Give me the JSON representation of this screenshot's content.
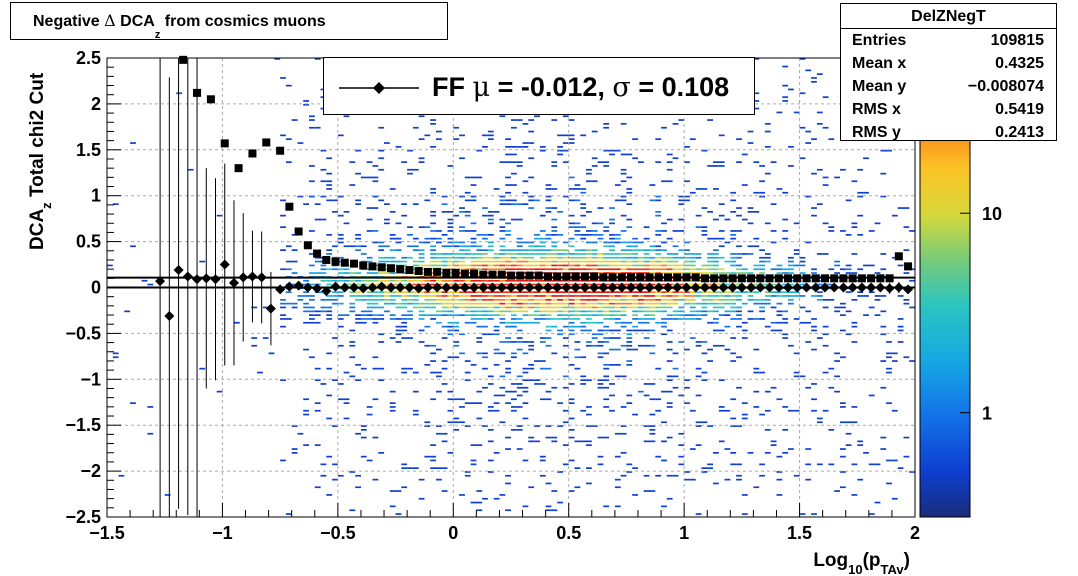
{
  "title": {
    "prefix": "Negative ",
    "delta": "Δ",
    "name": " DCA",
    "sub": "z",
    "suffix": " from cosmics muons"
  },
  "stats": {
    "name": "DelZNegT",
    "rows": [
      {
        "key": "Entries",
        "value": "109815"
      },
      {
        "key": "Mean x",
        "value": "0.4325"
      },
      {
        "key": "Mean y",
        "value": "−0.008074"
      },
      {
        "key": "RMS x",
        "value": "0.5419"
      },
      {
        "key": "RMS y",
        "value": "0.2413"
      }
    ]
  },
  "legend": {
    "pre": "FF ",
    "mu": "μ",
    "mid": " = -0.012, ",
    "sigma": "σ",
    "post": " =   0.108"
  },
  "axes": {
    "xlabel": {
      "main": "Log",
      "sub1": "10",
      "mid": "(p",
      "sub2": "TAv",
      "end": ")"
    },
    "ylabel": {
      "main": "DCA",
      "sub": "z",
      "suffix": "   Total chi2 Cut"
    }
  },
  "colors": {
    "frame": "#000000",
    "marker": "#000000"
  },
  "chart_data": {
    "type": "heatmap",
    "xlim": [
      -1.5,
      2.0
    ],
    "ylim": [
      -2.5,
      2.5
    ],
    "x_ticks": [
      -1.5,
      -1,
      -0.5,
      0,
      0.5,
      1,
      1.5,
      2
    ],
    "x_tick_labels": [
      "−1.5",
      "−1",
      "−0.5",
      "0",
      "0.5",
      "1",
      "1.5",
      "2"
    ],
    "y_ticks": [
      -2.5,
      -2,
      -1.5,
      -1,
      -0.5,
      0,
      0.5,
      1,
      1.5,
      2,
      2.5
    ],
    "y_tick_labels": [
      "−2.5",
      "−2",
      "−1.5",
      "−1",
      "−0.5",
      "0",
      "0.5",
      "1",
      "1.5",
      "2",
      "2.5"
    ],
    "grid": true,
    "colorbar": {
      "scale": "log",
      "tick_labels": [
        "1",
        "10"
      ],
      "tick_values": [
        1,
        10
      ],
      "range": [
        0.3,
        60
      ]
    },
    "reference_lines": [
      0.0,
      0.108
    ],
    "series": [
      {
        "marker": "square",
        "x": [
          -1.17,
          -1.11,
          -1.05,
          -0.99,
          -0.93,
          -0.87,
          -0.81,
          -0.75,
          -0.71,
          -0.67,
          -0.63,
          -0.59,
          -0.55,
          -0.51,
          -0.47,
          -0.43,
          -0.39,
          -0.35,
          -0.31,
          -0.27,
          -0.23,
          -0.19,
          -0.15,
          -0.11,
          -0.07,
          -0.03,
          0.01,
          0.05,
          0.09,
          0.13,
          0.17,
          0.21,
          0.25,
          0.29,
          0.33,
          0.37,
          0.41,
          0.45,
          0.49,
          0.53,
          0.57,
          0.61,
          0.65,
          0.69,
          0.73,
          0.77,
          0.81,
          0.85,
          0.89,
          0.93,
          0.97,
          1.01,
          1.05,
          1.09,
          1.13,
          1.17,
          1.21,
          1.25,
          1.29,
          1.33,
          1.37,
          1.41,
          1.45,
          1.49,
          1.53,
          1.57,
          1.61,
          1.65,
          1.69,
          1.73,
          1.77,
          1.81,
          1.85,
          1.89,
          1.93,
          1.97
        ],
        "y": [
          2.48,
          2.12,
          2.05,
          1.57,
          1.3,
          1.46,
          1.58,
          1.49,
          0.88,
          0.61,
          0.46,
          0.37,
          0.3,
          0.28,
          0.27,
          0.26,
          0.24,
          0.23,
          0.22,
          0.21,
          0.2,
          0.19,
          0.18,
          0.17,
          0.17,
          0.16,
          0.16,
          0.15,
          0.15,
          0.14,
          0.14,
          0.14,
          0.13,
          0.13,
          0.13,
          0.13,
          0.12,
          0.12,
          0.12,
          0.12,
          0.12,
          0.12,
          0.11,
          0.11,
          0.11,
          0.11,
          0.11,
          0.11,
          0.11,
          0.11,
          0.11,
          0.11,
          0.11,
          0.1,
          0.1,
          0.1,
          0.1,
          0.1,
          0.1,
          0.1,
          0.1,
          0.1,
          0.1,
          0.1,
          0.1,
          0.1,
          0.1,
          0.1,
          0.1,
          0.1,
          0.1,
          0.1,
          0.1,
          0.1,
          0.34,
          0.23
        ]
      },
      {
        "marker": "diamond",
        "x": [
          -1.27,
          -1.23,
          -1.19,
          -1.15,
          -1.11,
          -1.07,
          -1.03,
          -0.99,
          -0.95,
          -0.91,
          -0.87,
          -0.83,
          -0.79,
          -0.75,
          -0.71,
          -0.67,
          -0.63,
          -0.59,
          -0.55,
          -0.51,
          -0.47,
          -0.43,
          -0.39,
          -0.35,
          -0.31,
          -0.27,
          -0.23,
          -0.19,
          -0.15,
          -0.11,
          -0.07,
          -0.03,
          0.01,
          0.05,
          0.09,
          0.13,
          0.17,
          0.21,
          0.25,
          0.29,
          0.33,
          0.37,
          0.41,
          0.45,
          0.49,
          0.53,
          0.57,
          0.61,
          0.65,
          0.69,
          0.73,
          0.77,
          0.81,
          0.85,
          0.89,
          0.93,
          0.97,
          1.01,
          1.05,
          1.09,
          1.13,
          1.17,
          1.21,
          1.25,
          1.29,
          1.33,
          1.37,
          1.41,
          1.45,
          1.49,
          1.53,
          1.57,
          1.61,
          1.65,
          1.69,
          1.73,
          1.77,
          1.81,
          1.85,
          1.89,
          1.93,
          1.97
        ],
        "y": [
          0.07,
          -0.31,
          0.19,
          0.12,
          0.09,
          0.1,
          0.09,
          0.25,
          0.05,
          0.11,
          0.12,
          0.11,
          -0.23,
          -0.02,
          0.01,
          0.02,
          0.0,
          -0.01,
          -0.04,
          0.01,
          0.0,
          0.0,
          -0.01,
          0.0,
          0.01,
          0.0,
          0.0,
          0.0,
          -0.01,
          0.0,
          0.0,
          0.0,
          0.0,
          0.0,
          0.0,
          0.0,
          0.0,
          0.0,
          0.0,
          0.0,
          0.0,
          0.0,
          0.0,
          0.0,
          0.0,
          0.0,
          0.0,
          0.0,
          0.0,
          0.0,
          0.0,
          0.0,
          0.0,
          0.0,
          0.0,
          0.0,
          0.0,
          0.0,
          0.0,
          0.0,
          0.0,
          0.0,
          0.0,
          0.0,
          0.0,
          0.0,
          0.0,
          0.0,
          0.0,
          0.0,
          0.0,
          0.0,
          0.0,
          0.0,
          0.0,
          0.0,
          0.0,
          0.0,
          0.0,
          -0.01,
          0.0,
          -0.02
        ],
        "yerr": [
          2.6,
          2.6,
          2.6,
          2.6,
          2.6,
          1.2,
          1.1,
          1.1,
          0.9,
          0.7,
          0.5,
          0.5,
          0.4,
          0.05,
          0.05,
          0.04,
          0.03,
          0.03,
          0.02,
          0.02,
          0.02,
          0.02,
          0.02,
          0.02,
          0.02,
          0.02,
          0.02,
          0.02,
          0.02,
          0.02,
          0.02,
          0.02,
          0.02,
          0.02,
          0.02,
          0.02,
          0.02,
          0.02,
          0.02,
          0.02,
          0.02,
          0.02,
          0.02,
          0.02,
          0.02,
          0.02,
          0.02,
          0.02,
          0.02,
          0.02,
          0.02,
          0.02,
          0.02,
          0.02,
          0.02,
          0.02,
          0.02,
          0.02,
          0.02,
          0.02,
          0.02,
          0.02,
          0.02,
          0.02,
          0.02,
          0.02,
          0.02,
          0.02,
          0.02,
          0.02,
          0.02,
          0.02,
          0.02,
          0.02,
          0.02,
          0.02,
          0.02,
          0.02,
          0.02,
          0.06,
          0.06,
          0.04
        ]
      }
    ]
  }
}
